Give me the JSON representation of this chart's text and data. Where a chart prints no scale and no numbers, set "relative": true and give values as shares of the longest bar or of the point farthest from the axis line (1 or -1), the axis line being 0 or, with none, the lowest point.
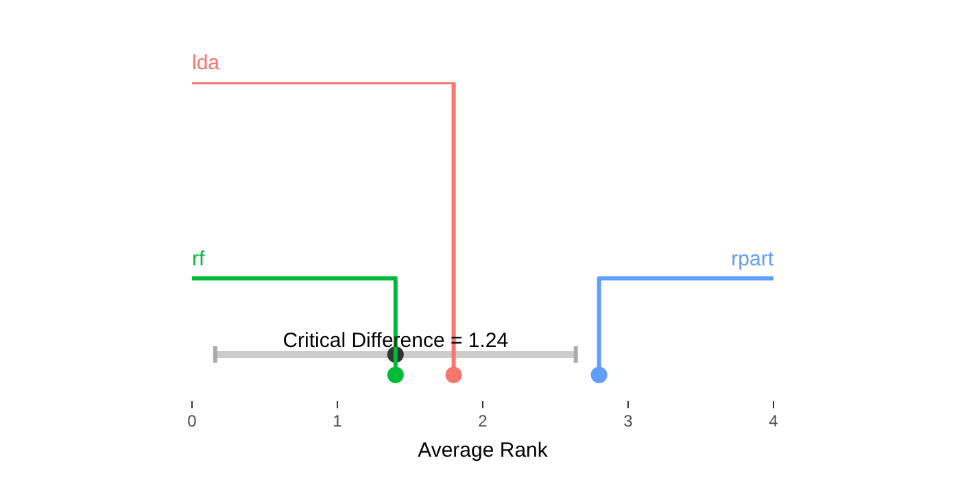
{
  "chart_data": {
    "type": "line",
    "relative": true,
    "xlabel": "Average Rank",
    "xlim": [
      0,
      4
    ],
    "xticks": [
      0,
      1,
      2,
      3,
      4
    ],
    "grid": false,
    "legend": false,
    "series": [
      {
        "name": "lda",
        "marker": "none",
        "color": "#f8766d",
        "x": [
          0,
          1.8,
          1.8
        ],
        "values": [
          1,
          1,
          0
        ]
      },
      {
        "name": "rf",
        "marker": "none",
        "color": "#00ba38",
        "x": [
          0,
          1.4,
          1.4
        ],
        "values": [
          0.33,
          0.33,
          0
        ]
      },
      {
        "name": "rpart",
        "marker": "none",
        "color": "#619cff",
        "x": [
          4,
          2.8,
          2.8
        ],
        "values": [
          0.33,
          0.33,
          0
        ]
      },
      {
        "type": "scatter",
        "marker": "circle",
        "color": "#f8766d",
        "x": [
          1.8
        ],
        "values": [
          0
        ]
      },
      {
        "type": "scatter",
        "marker": "circle",
        "color": "#00ba38",
        "x": [
          1.4
        ],
        "values": [
          0
        ]
      },
      {
        "type": "scatter",
        "marker": "circle",
        "color": "#619cff",
        "x": [
          2.8
        ],
        "values": [
          0
        ]
      },
      {
        "type": "scatter",
        "marker": "circle",
        "color": "#333333",
        "x": [
          1.4
        ],
        "values": [
          0.07
        ],
        "xerrors": [
          1.24
        ]
      }
    ],
    "annotations": [
      {
        "text": "Critical Difference = 1.24",
        "x": 1.4,
        "y": 0.07
      }
    ]
  }
}
